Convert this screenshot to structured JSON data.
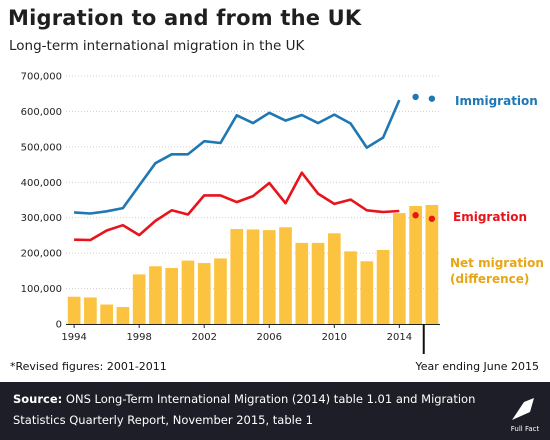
{
  "header": {
    "title": "Migration to and from the UK",
    "subtitle": "Long-term international migration in the UK"
  },
  "footnote": "*Revised figures: 2001-2011",
  "year_ending": "Year ending June 2015",
  "footer": {
    "source_label": "Source:",
    "source_text": "ONS Long-Term International Migration (2014) table 1.01 and Migration Statistics Quarterly Report, November 2015, table 1",
    "logo_text": "Full Fact"
  },
  "colors": {
    "immigration": "#1f77b4",
    "emigration": "#e8141b",
    "net_migration": "#fbc33f",
    "footer_bg": "#1e1e28"
  },
  "chart_data": {
    "type": "bar",
    "title": "Migration to and from the UK",
    "subtitle": "Long-term international migration in the UK",
    "ylim": [
      0,
      700000
    ],
    "yticks": [
      0,
      100000,
      200000,
      300000,
      400000,
      500000,
      600000,
      700000
    ],
    "ytick_labels": [
      "0",
      "100,000",
      "200,000",
      "300,000",
      "400,000",
      "500,000",
      "600,000",
      "700,000"
    ],
    "xtick_labels": [
      "1994",
      "1998",
      "2002",
      "2006",
      "2010",
      "2014"
    ],
    "grid": true,
    "years": [
      1994,
      1995,
      1996,
      1997,
      1998,
      1999,
      2000,
      2001,
      2002,
      2003,
      2004,
      2005,
      2006,
      2007,
      2008,
      2009,
      2010,
      2011,
      2012,
      2013,
      2014
    ],
    "series": [
      {
        "name": "Immigration",
        "kind": "line",
        "values": [
          315000,
          312000,
          318000,
          327000,
          391000,
          454000,
          479000,
          479000,
          516000,
          511000,
          589000,
          567000,
          596000,
          574000,
          590000,
          567000,
          591000,
          566000,
          498000,
          526000,
          632000
        ]
      },
      {
        "name": "Emigration",
        "kind": "line",
        "values": [
          238000,
          237000,
          264000,
          279000,
          251000,
          291000,
          321000,
          309000,
          363000,
          363000,
          344000,
          361000,
          398000,
          341000,
          427000,
          368000,
          339000,
          351000,
          321000,
          316000,
          319000
        ]
      },
      {
        "name": "Net migration (difference)",
        "kind": "bar",
        "values": [
          77000,
          75000,
          55000,
          48000,
          140000,
          163000,
          158000,
          179000,
          172000,
          185000,
          268000,
          267000,
          265000,
          273000,
          229000,
          229000,
          256000,
          205000,
          177000,
          209000,
          313000
        ]
      }
    ],
    "year_ending_june_2015": {
      "label": "Year ending June 2015",
      "immigration": [
        641000,
        636000
      ],
      "emigration": [
        307000,
        297000
      ],
      "net_migration": [
        333000,
        336000
      ]
    }
  }
}
